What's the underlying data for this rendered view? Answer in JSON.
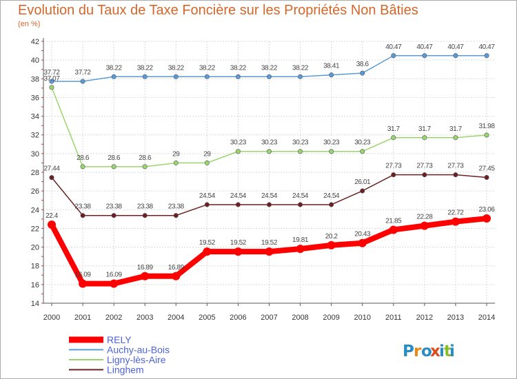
{
  "title": "Evolution du Taux de Taxe Foncière sur les Propriétés Non Bâties",
  "subtitle": "(en %)",
  "logo_text": "Proxiti",
  "chart_data": {
    "type": "line",
    "x": [
      "2000",
      "2001",
      "2002",
      "2003",
      "2004",
      "2005",
      "2006",
      "2007",
      "2008",
      "2009",
      "2010",
      "2011",
      "2012",
      "2013",
      "2014"
    ],
    "ylim": [
      14,
      42
    ],
    "yticks": [
      14,
      16,
      18,
      20,
      22,
      24,
      26,
      28,
      30,
      32,
      34,
      36,
      38,
      40,
      42
    ],
    "grid": true,
    "legend_position": "bottom-left",
    "series": [
      {
        "name": "RELY",
        "color": "#ff0000",
        "values": [
          22.4,
          16.09,
          16.09,
          16.89,
          16.89,
          19.52,
          19.52,
          19.52,
          19.81,
          20.2,
          20.43,
          21.85,
          22.28,
          22.72,
          23.06
        ],
        "labels": [
          "22.4",
          "16.09",
          "16.09",
          "16.89",
          "16.89",
          "19.52",
          "19.52",
          "19.52",
          "19.81",
          "20.2",
          "20.43",
          "21.85",
          "22.28",
          "22.72",
          "23.06"
        ]
      },
      {
        "name": "Auchy-au-Bois",
        "color": "#5b9bd5",
        "values": [
          37.72,
          37.72,
          38.22,
          38.22,
          38.22,
          38.22,
          38.22,
          38.22,
          38.22,
          38.41,
          38.6,
          40.47,
          40.47,
          40.47,
          40.47
        ],
        "labels": [
          "37.72",
          "37.72",
          "38.22",
          "38.22",
          "38.22",
          "38.22",
          "38.22",
          "38.22",
          "38.22",
          "38.41",
          "38.6",
          "40.47",
          "40.47",
          "40.47",
          "40.47"
        ]
      },
      {
        "name": "Ligny-lès-Aire",
        "color": "#9ad56b",
        "values": [
          37.07,
          28.6,
          28.6,
          28.6,
          29,
          29,
          30.23,
          30.23,
          30.23,
          30.23,
          30.23,
          31.7,
          31.7,
          31.7,
          31.98
        ],
        "labels": [
          "37.07",
          "28.6",
          "28.6",
          "28.6",
          "29",
          "29",
          "30.23",
          "30.23",
          "30.23",
          "30.23",
          "30.23",
          "31.7",
          "31.7",
          "31.7",
          "31.98"
        ]
      },
      {
        "name": "Linghem",
        "color": "#6b1f1f",
        "values": [
          27.44,
          23.38,
          23.38,
          23.38,
          23.38,
          24.54,
          24.54,
          24.54,
          24.54,
          24.54,
          26.01,
          27.73,
          27.73,
          27.73,
          27.45
        ],
        "labels": [
          "27.44",
          "23.38",
          "23.38",
          "23.38",
          "23.38",
          "24.54",
          "24.54",
          "24.54",
          "24.54",
          "24.54",
          "26.01",
          "27.73",
          "27.73",
          "27.73",
          "27.45"
        ]
      }
    ]
  }
}
